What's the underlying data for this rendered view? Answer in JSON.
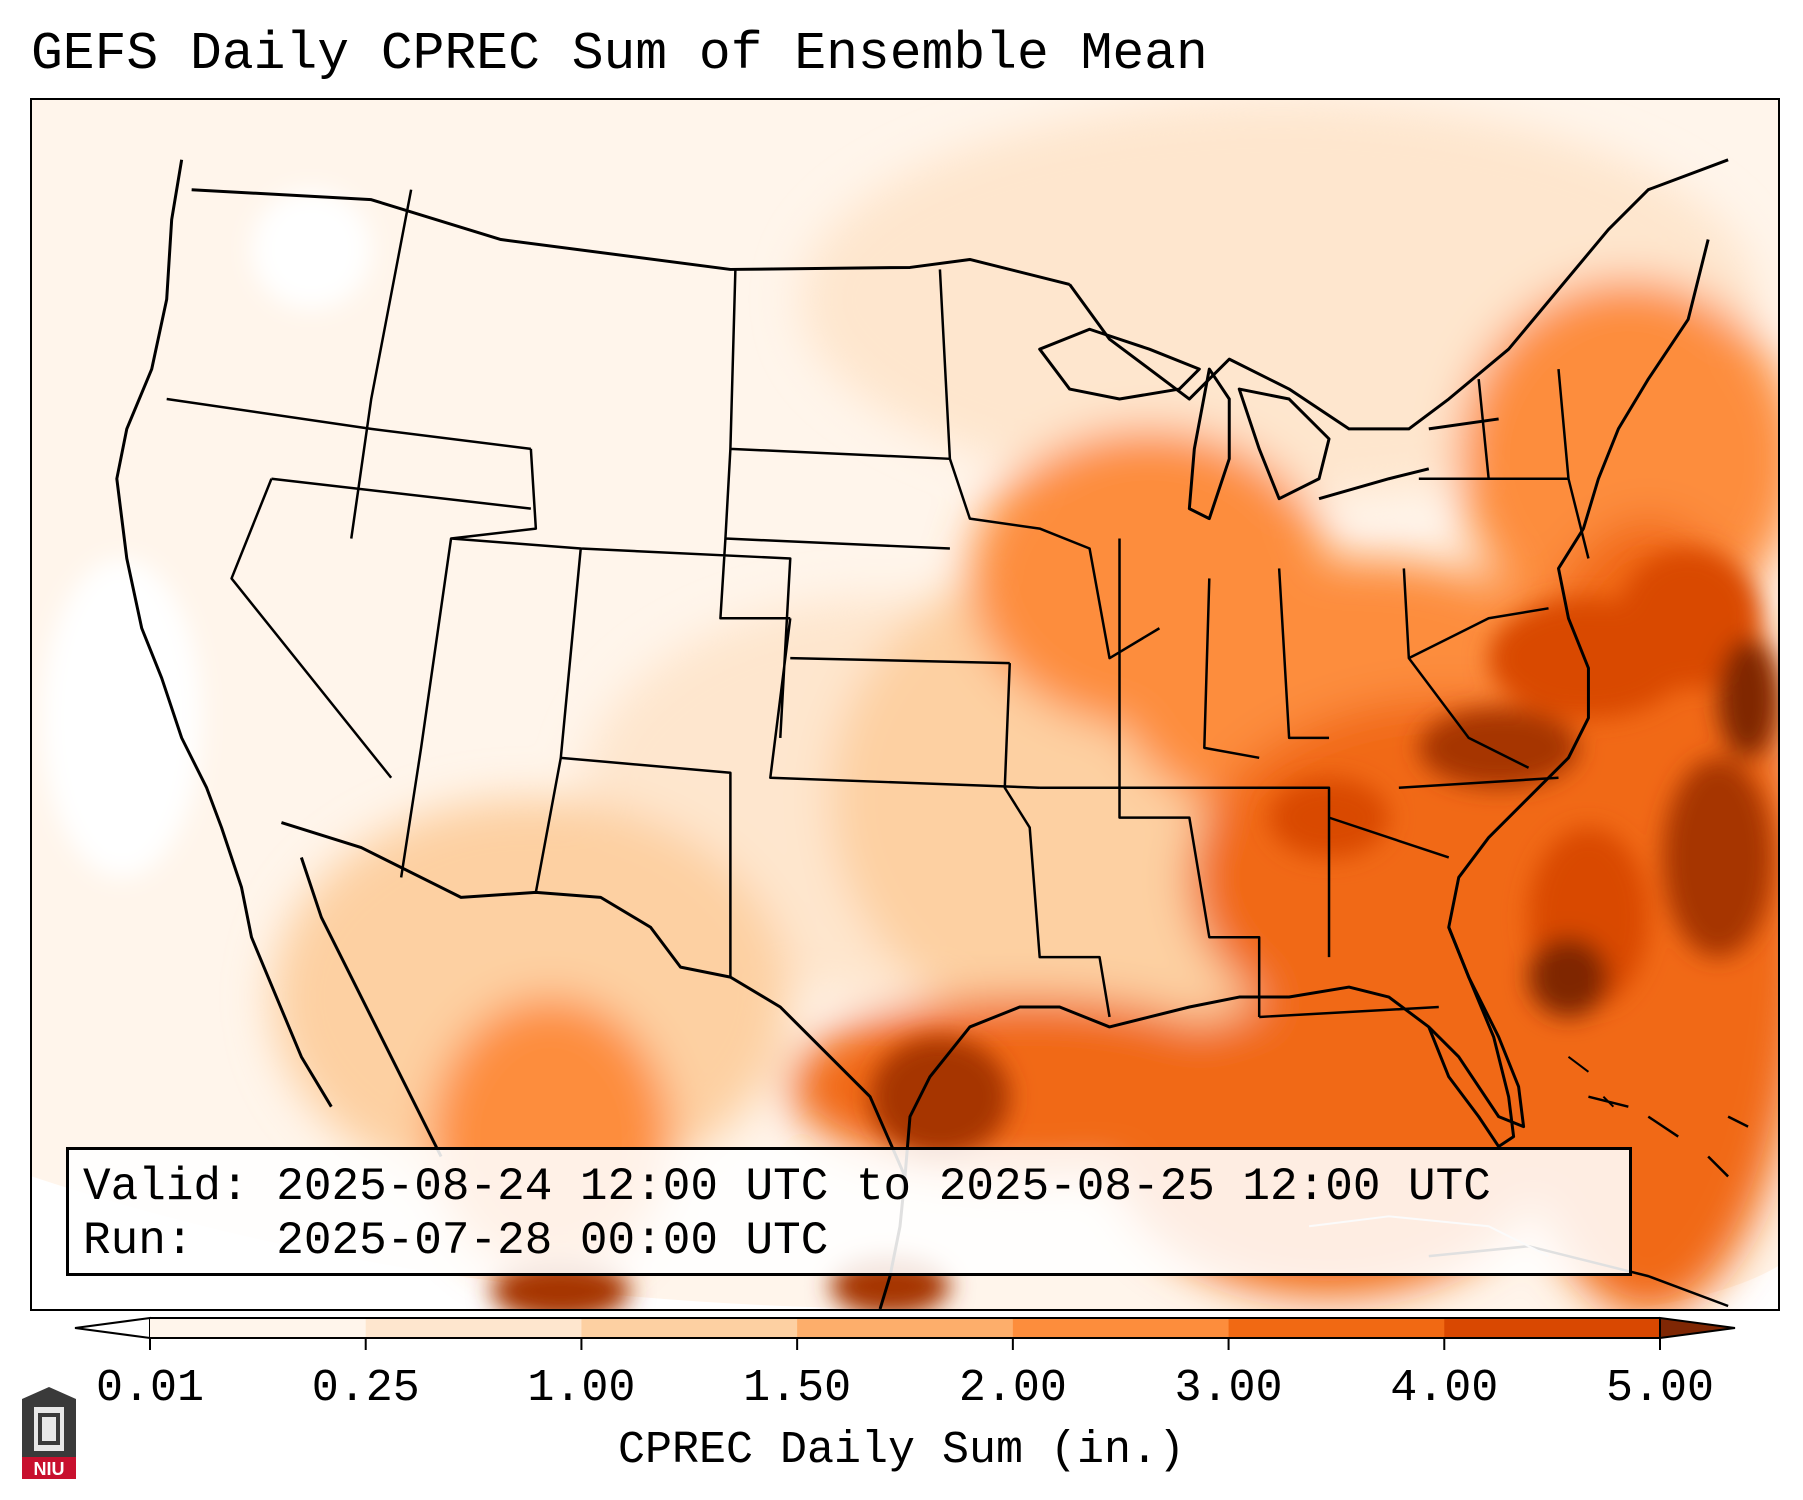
{
  "title": "GEFS Daily CPREC Sum of Ensemble Mean",
  "info": {
    "valid_label": "Valid:",
    "valid_value": "2025-08-24 12:00 UTC to 2025-08-25 12:00 UTC",
    "run_label": "Run:",
    "run_value": "2025-07-28 00:00 UTC"
  },
  "colorbar": {
    "label": "CPREC Daily Sum (in.)",
    "ticks": [
      "0.01",
      "0.25",
      "1.00",
      "1.50",
      "2.00",
      "3.00",
      "4.00",
      "5.00"
    ],
    "colors": [
      "#fff5eb",
      "#fee6ce",
      "#fdd0a2",
      "#fdae6b",
      "#fd8d3c",
      "#f16913",
      "#d94801",
      "#a63603"
    ],
    "under_color": "#ffffff",
    "over_color": "#7f2704",
    "extend": "both"
  },
  "map": {
    "projection": "conic (CONUS)",
    "field": "CPREC daily sum",
    "features": [
      "state boundaries",
      "country boundaries",
      "coastlines",
      "lakes"
    ]
  },
  "logo": {
    "text": "NIU"
  }
}
